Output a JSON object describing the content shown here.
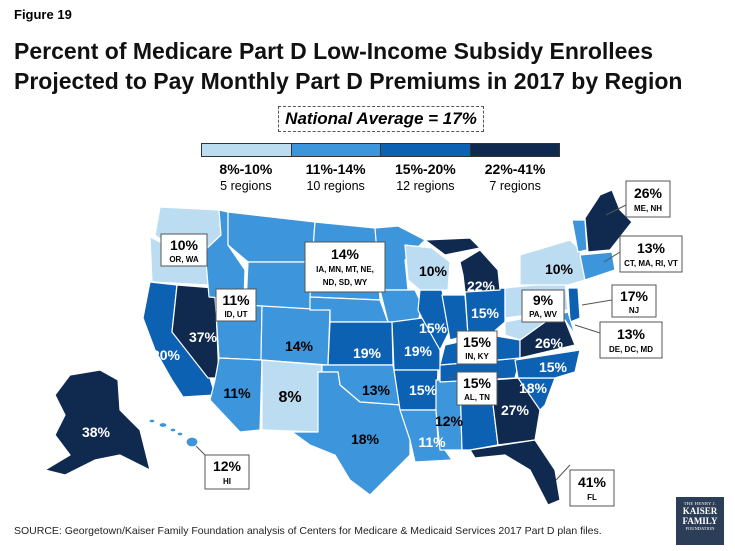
{
  "figure_label": "Figure 19",
  "title_lines": [
    "Percent of Medicare Part D Low-Income Subsidy Enrollees",
    "Projected to Pay Monthly Part D Premiums in 2017 by Region"
  ],
  "national_average": "National Average = 17%",
  "legend": [
    {
      "range": "8%-10%",
      "count": "5 regions",
      "color": "#bcdcf2"
    },
    {
      "range": "11%-14%",
      "count": "10 regions",
      "color": "#3d95dc"
    },
    {
      "range": "15%-20%",
      "count": "12 regions",
      "color": "#0c61b3"
    },
    {
      "range": "22%-41%",
      "count": "7 regions",
      "color": "#10294f"
    }
  ],
  "regions": {
    "pacific_nw": {
      "value": "10%",
      "states": "OR, WA"
    },
    "idaho_utah": {
      "value": "11%",
      "states": "ID, UT"
    },
    "plains": {
      "value": "14%",
      "states": "IA, MN, MT, NE, ND, SD, WY"
    },
    "california": {
      "value": "20%"
    },
    "nevada": {
      "value": "37%"
    },
    "colorado": {
      "value": "14%"
    },
    "arizona": {
      "value": "11%"
    },
    "new_mexico": {
      "value": "8%"
    },
    "kansas": {
      "value": "19%"
    },
    "missouri": {
      "value": "19%"
    },
    "oklahoma": {
      "value": "13%"
    },
    "texas": {
      "value": "18%"
    },
    "arkansas": {
      "value": "15%"
    },
    "louisiana": {
      "value": "11%"
    },
    "mississippi": {
      "value": "12%"
    },
    "alabama_tennessee": {
      "value": "15%",
      "states": "AL, TN"
    },
    "georgia": {
      "value": "27%"
    },
    "florida": {
      "value": "41%",
      "states": "FL"
    },
    "south_carolina": {
      "value": "18%"
    },
    "north_carolina": {
      "value": "15%"
    },
    "virginia": {
      "value": "26%"
    },
    "indiana_kentucky": {
      "value": "15%",
      "states": "IN, KY"
    },
    "illinois": {
      "value": "15%"
    },
    "ohio": {
      "value": "15%"
    },
    "michigan": {
      "value": "22%"
    },
    "wisconsin": {
      "value": "10%"
    },
    "new_york": {
      "value": "10%"
    },
    "pa_wv": {
      "value": "9%",
      "states": "PA, WV"
    },
    "new_jersey": {
      "value": "17%",
      "states": "NJ"
    },
    "mid_atlantic": {
      "value": "13%",
      "states": "DE, DC, MD"
    },
    "new_england_south": {
      "value": "13%",
      "states": "CT, MA, RI, VT"
    },
    "maine_nh": {
      "value": "26%",
      "states": "ME, NH"
    },
    "alaska": {
      "value": "38%"
    },
    "hawaii": {
      "value": "12%",
      "states": "HI"
    }
  },
  "source": "SOURCE: Georgetown/Kaiser Family Foundation  analysis of Centers for Medicare & Medicaid Services 2017 Part D plan files.",
  "logo": {
    "line1": "THE HENRY J.",
    "line2": "KAISER",
    "line3": "FAMILY",
    "line4": "FOUNDATION"
  }
}
